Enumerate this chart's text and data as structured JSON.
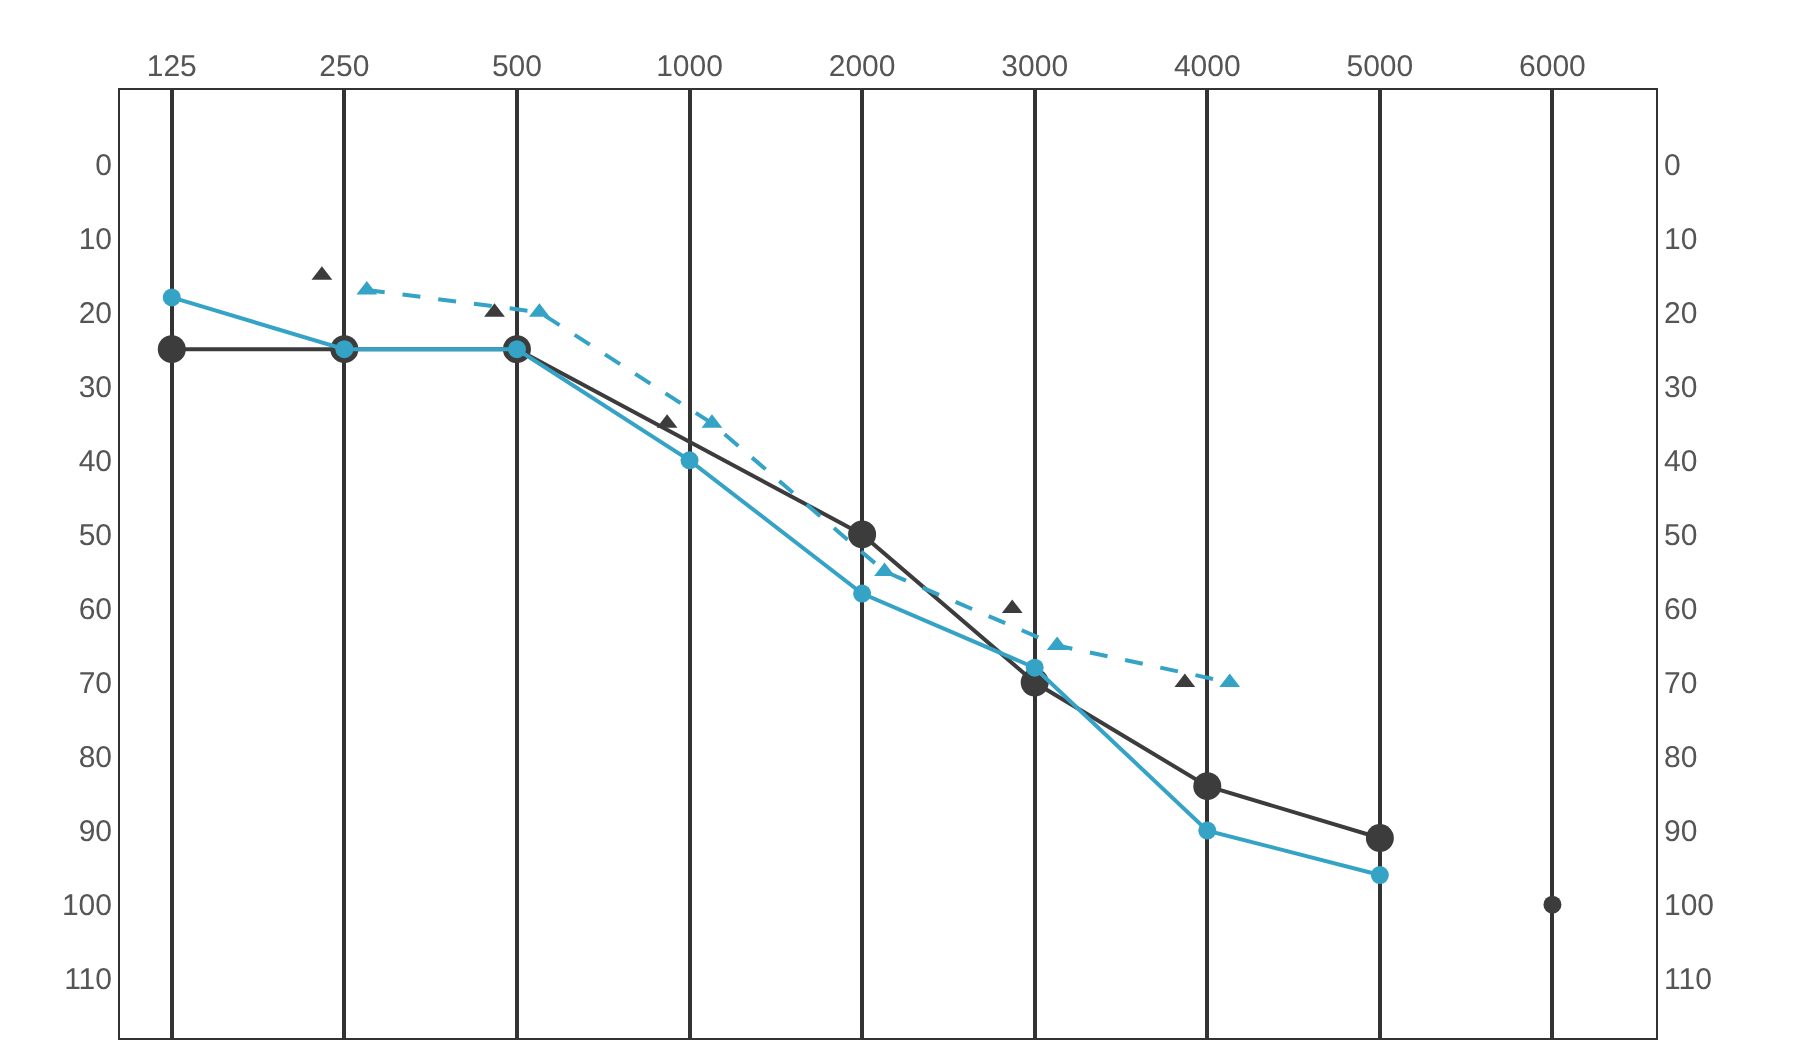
{
  "chart_data": {
    "type": "line",
    "categories": [
      "125",
      "250",
      "500",
      "1000",
      "2000",
      "3000",
      "4000",
      "5000",
      "6000"
    ],
    "ylim": [
      118,
      -10
    ],
    "yticks": [
      0,
      10,
      20,
      30,
      40,
      50,
      60,
      70,
      80,
      90,
      100,
      110
    ],
    "y2lim": [
      118,
      -10
    ],
    "y2ticks": [
      0,
      10,
      20,
      30,
      40,
      50,
      60,
      70,
      80,
      90,
      100,
      110
    ],
    "grid": "x",
    "legend": false,
    "marker": "circle",
    "series": [
      {
        "color": "#3c3c3c",
        "values": [
          25,
          25,
          25,
          null,
          50,
          70,
          84,
          91,
          null
        ]
      },
      {
        "color": "#35a3c6",
        "values": [
          18,
          25,
          25,
          40,
          58,
          68,
          90,
          96,
          null
        ]
      },
      {
        "type": "scatter",
        "color": "#3c3c3c",
        "values": [
          null,
          null,
          null,
          null,
          null,
          null,
          null,
          null,
          100
        ]
      },
      {
        "type": "scatter",
        "marker": "triangle",
        "color": "#3c3c3c",
        "values": [
          null,
          15,
          20,
          35,
          null,
          60,
          70,
          null,
          null
        ]
      },
      {
        "type": "line",
        "marker": "triangle",
        "line_style": "dashed",
        "color": "#35a3c6",
        "values": [
          null,
          17,
          20,
          35,
          55,
          65,
          70,
          null,
          null
        ]
      }
    ]
  }
}
